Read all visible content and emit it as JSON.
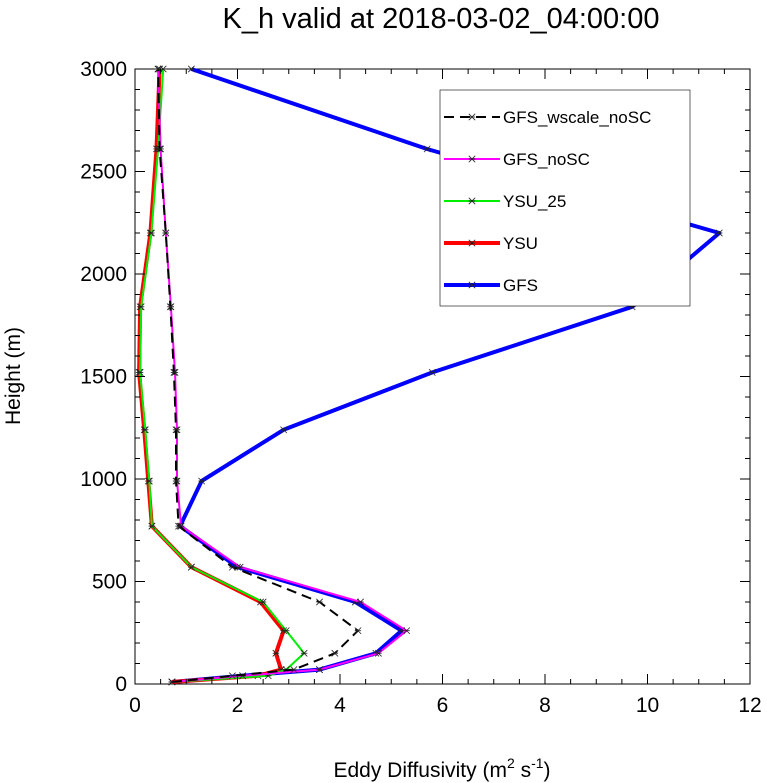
{
  "chart_data": {
    "type": "line",
    "title": "K_h valid at 2018-03-02_04:00:00",
    "xlabel_main": "Eddy Diffusivity (m",
    "xlabel_sup1": "2",
    "xlabel_mid": " s",
    "xlabel_sup2": "-1",
    "xlabel_end": ")",
    "ylabel": "Height (m)",
    "xlim": [
      0,
      12
    ],
    "ylim": [
      0,
      3000
    ],
    "xticks": [
      0,
      2,
      4,
      6,
      8,
      10,
      12
    ],
    "xtick_labels": [
      "0",
      "2",
      "4",
      "6",
      "8",
      "10",
      "12"
    ],
    "yticks": [
      0,
      500,
      1000,
      1500,
      2000,
      2500,
      3000
    ],
    "ytick_labels": [
      "0",
      "500",
      "1000",
      "1500",
      "2000",
      "2500",
      "3000"
    ],
    "legend_position": "top-right",
    "series": [
      {
        "name": "GFS",
        "color": "#0000ff",
        "dash": "",
        "heights": [
          10,
          40,
          70,
          150,
          260,
          400,
          570,
          770,
          990,
          1240,
          1520,
          1840,
          2200,
          2610,
          3000
        ],
        "values": [
          0.72,
          2.1,
          3.6,
          4.7,
          5.2,
          4.3,
          2.0,
          0.88,
          1.3,
          2.9,
          5.8,
          9.7,
          11.4,
          5.7,
          1.1
        ]
      },
      {
        "name": "YSU",
        "color": "#ff0000",
        "dash": "",
        "heights": [
          10,
          40,
          70,
          150,
          260,
          400,
          570,
          770,
          990,
          1240,
          1520,
          1840,
          2200,
          2610,
          3000
        ],
        "values": [
          0.72,
          2.4,
          2.85,
          2.75,
          2.9,
          2.45,
          1.1,
          0.33,
          0.26,
          0.18,
          0.08,
          0.1,
          0.3,
          0.42,
          0.48
        ]
      },
      {
        "name": "YSU_25",
        "color": "#00ee00",
        "dash": "",
        "heights": [
          10,
          40,
          70,
          150,
          260,
          400,
          570,
          770,
          990,
          1240,
          1520,
          1840,
          2200,
          2610,
          3000
        ],
        "values": [
          0.72,
          2.6,
          2.95,
          3.3,
          2.95,
          2.5,
          1.1,
          0.33,
          0.28,
          0.2,
          0.1,
          0.12,
          0.32,
          0.45,
          0.55
        ]
      },
      {
        "name": "GFS_noSC",
        "color": "#ff00ff",
        "dash": "",
        "heights": [
          10,
          40,
          70,
          150,
          260,
          400,
          570,
          770,
          990,
          1240,
          1520,
          1840,
          2200,
          2610,
          3000
        ],
        "values": [
          0.72,
          2.1,
          3.6,
          4.75,
          5.3,
          4.4,
          2.05,
          0.9,
          0.82,
          0.82,
          0.78,
          0.7,
          0.6,
          0.5,
          0.45
        ]
      },
      {
        "name": "GFS_wscale_noSC",
        "color": "#000000",
        "dash": "10,6",
        "heights": [
          10,
          40,
          70,
          150,
          260,
          400,
          570,
          770,
          990,
          1240,
          1520,
          1840,
          2200,
          2610,
          3000
        ],
        "values": [
          0.72,
          1.9,
          3.1,
          3.9,
          4.35,
          3.6,
          1.9,
          0.85,
          0.8,
          0.8,
          0.76,
          0.69,
          0.6,
          0.48,
          0.45
        ]
      }
    ],
    "legend_order": [
      "GFS_wscale_noSC",
      "GFS_noSC",
      "YSU_25",
      "YSU",
      "GFS"
    ],
    "legend_widths": [
      2,
      2,
      2,
      4,
      4
    ]
  }
}
